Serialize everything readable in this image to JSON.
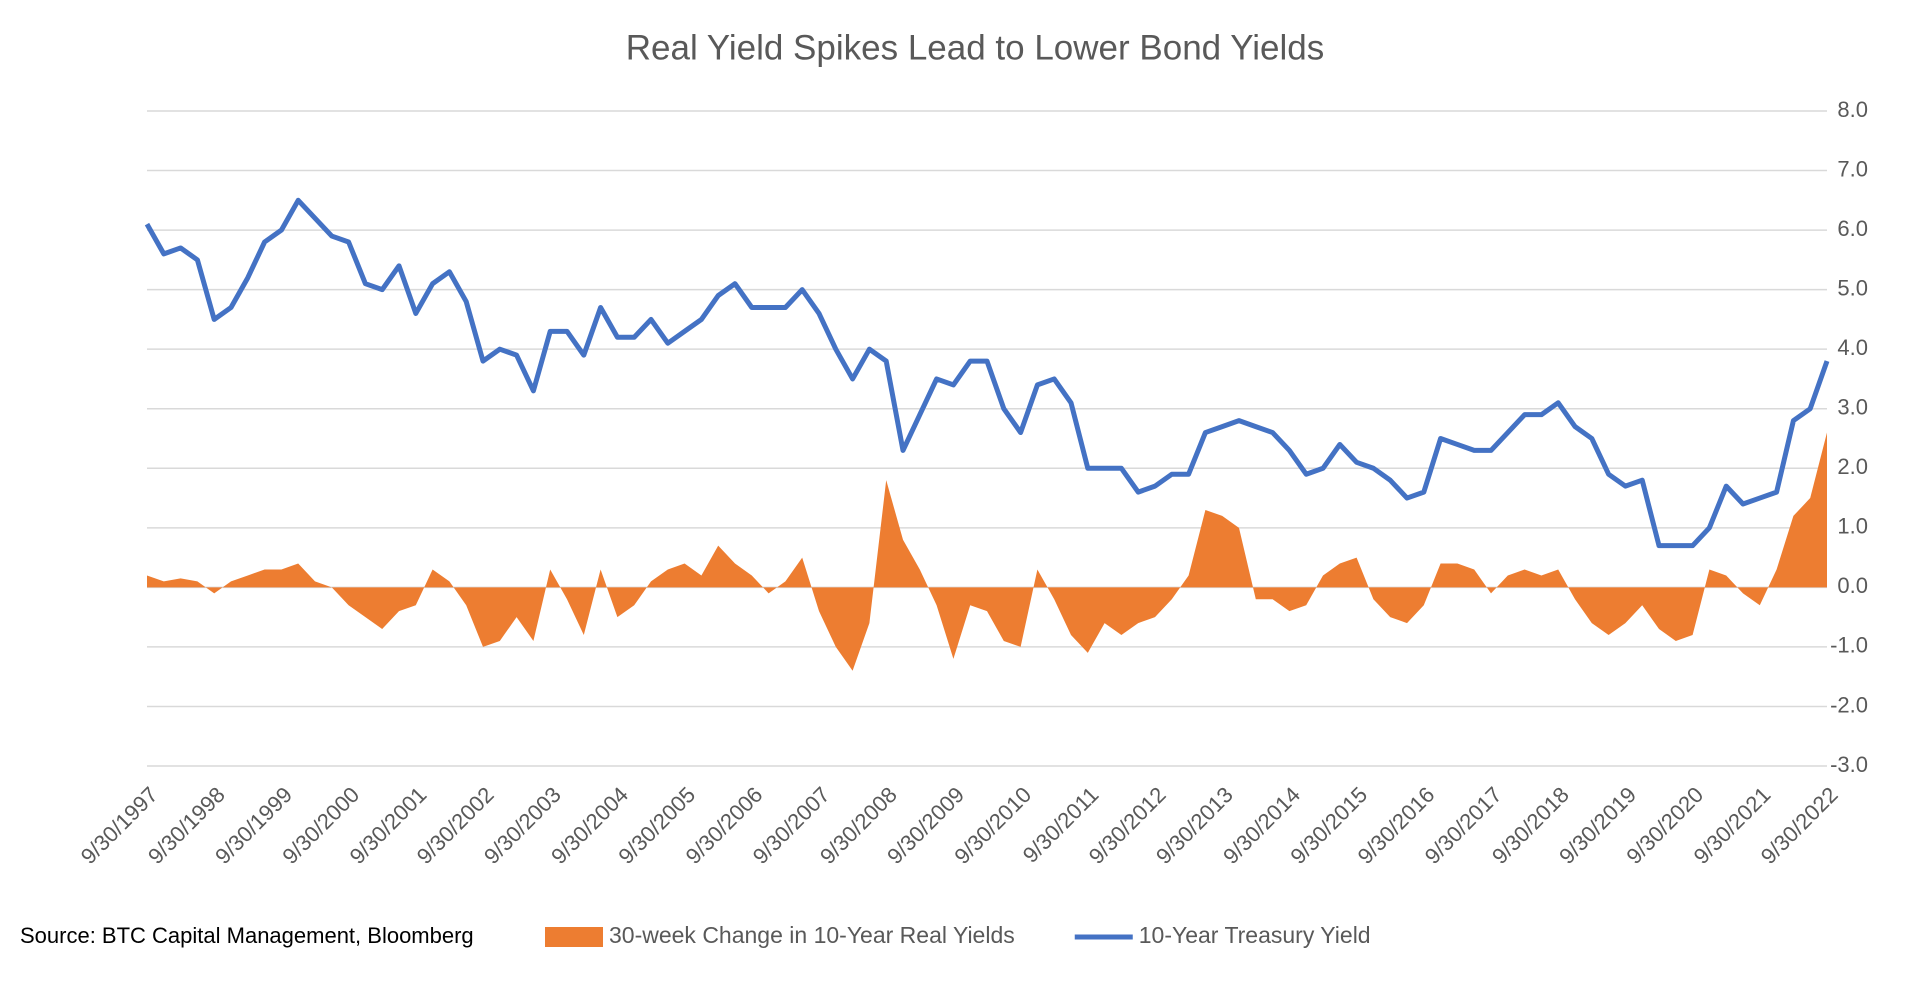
{
  "chart_data": {
    "type": "line_area",
    "title": "Real Yield Spikes Lead to Lower Bond Yields",
    "source": "Source:  BTC Capital Management, Bloomberg",
    "x": [
      1997.75,
      1998,
      1998.25,
      1998.5,
      1998.75,
      1999,
      1999.25,
      1999.5,
      1999.75,
      2000,
      2000.25,
      2000.5,
      2000.75,
      2001,
      2001.25,
      2001.5,
      2001.75,
      2002,
      2002.25,
      2002.5,
      2002.75,
      2003,
      2003.25,
      2003.5,
      2003.75,
      2004,
      2004.25,
      2004.5,
      2004.75,
      2005,
      2005.25,
      2005.5,
      2005.75,
      2006,
      2006.25,
      2006.5,
      2006.75,
      2007,
      2007.25,
      2007.5,
      2007.75,
      2008,
      2008.25,
      2008.5,
      2008.75,
      2009,
      2009.25,
      2009.5,
      2009.75,
      2010,
      2010.25,
      2010.5,
      2010.75,
      2011,
      2011.25,
      2011.5,
      2011.75,
      2012,
      2012.25,
      2012.5,
      2012.75,
      2013,
      2013.25,
      2013.5,
      2013.75,
      2014,
      2014.25,
      2014.5,
      2014.75,
      2015,
      2015.25,
      2015.5,
      2015.75,
      2016,
      2016.25,
      2016.5,
      2016.75,
      2017,
      2017.25,
      2017.5,
      2017.75,
      2018,
      2018.25,
      2018.5,
      2018.75,
      2019,
      2019.25,
      2019.5,
      2019.75,
      2020,
      2020.25,
      2020.5,
      2020.75,
      2021,
      2021.25,
      2021.5,
      2021.75,
      2022,
      2022.25,
      2022.5,
      2022.75
    ],
    "series": [
      {
        "name": "30-week Change in 10-Year Real Yields",
        "kind": "area",
        "color": "#ed7d31",
        "values": [
          0.2,
          0.1,
          0.15,
          0.1,
          -0.1,
          0.1,
          0.2,
          0.3,
          0.3,
          0.4,
          0.1,
          0,
          -0.3,
          -0.5,
          -0.7,
          -0.4,
          -0.3,
          0.3,
          0.1,
          -0.3,
          -1.0,
          -0.9,
          -0.5,
          -0.9,
          0.3,
          -0.2,
          -0.8,
          0.3,
          -0.5,
          -0.3,
          0.1,
          0.3,
          0.4,
          0.2,
          0.7,
          0.4,
          0.2,
          -0.1,
          0.1,
          0.5,
          -0.4,
          -1.0,
          -1.4,
          -0.6,
          1.8,
          0.8,
          0.3,
          -0.3,
          -1.2,
          -0.3,
          -0.4,
          -0.9,
          -1.0,
          0.3,
          -0.2,
          -0.8,
          -1.1,
          -0.6,
          -0.8,
          -0.6,
          -0.5,
          -0.2,
          0.2,
          1.3,
          1.2,
          1.0,
          -0.2,
          -0.2,
          -0.4,
          -0.3,
          0.2,
          0.4,
          0.5,
          -0.2,
          -0.5,
          -0.6,
          -0.3,
          0.4,
          0.4,
          0.3,
          -0.1,
          0.2,
          0.3,
          0.2,
          0.3,
          -0.2,
          -0.6,
          -0.8,
          -0.6,
          -0.3,
          -0.7,
          -0.9,
          -0.8,
          0.3,
          0.2,
          -0.1,
          -0.3,
          0.3,
          1.2,
          1.5,
          2.6
        ]
      },
      {
        "name": "10-Year Treasury Yield",
        "kind": "line",
        "color": "#4472c4",
        "values": [
          6.1,
          5.6,
          5.7,
          5.5,
          4.5,
          4.7,
          5.2,
          5.8,
          6.0,
          6.5,
          6.2,
          5.9,
          5.8,
          5.1,
          5.0,
          5.4,
          4.6,
          5.1,
          5.3,
          4.8,
          3.8,
          4.0,
          3.9,
          3.3,
          4.3,
          4.3,
          3.9,
          4.7,
          4.2,
          4.2,
          4.5,
          4.1,
          4.3,
          4.5,
          4.9,
          5.1,
          4.7,
          4.7,
          4.7,
          5.0,
          4.6,
          4.0,
          3.5,
          4.0,
          3.8,
          2.3,
          2.9,
          3.5,
          3.4,
          3.8,
          3.8,
          3.0,
          2.6,
          3.4,
          3.5,
          3.1,
          2.0,
          2.0,
          2.0,
          1.6,
          1.7,
          1.9,
          1.9,
          2.6,
          2.7,
          2.8,
          2.7,
          2.6,
          2.3,
          1.9,
          2.0,
          2.4,
          2.1,
          2.0,
          1.8,
          1.5,
          1.6,
          2.5,
          2.4,
          2.3,
          2.3,
          2.6,
          2.9,
          2.9,
          3.1,
          2.7,
          2.5,
          1.9,
          1.7,
          1.8,
          0.7,
          0.7,
          0.7,
          1.0,
          1.7,
          1.4,
          1.5,
          1.6,
          2.8,
          3.0,
          3.8
        ]
      }
    ],
    "xlim": [
      1997.75,
      2022.75
    ],
    "xticks": [
      {
        "value": 1997.75,
        "label": "9/30/1997"
      },
      {
        "value": 1998.75,
        "label": "9/30/1998"
      },
      {
        "value": 1999.75,
        "label": "9/30/1999"
      },
      {
        "value": 2000.75,
        "label": "9/30/2000"
      },
      {
        "value": 2001.75,
        "label": "9/30/2001"
      },
      {
        "value": 2002.75,
        "label": "9/30/2002"
      },
      {
        "value": 2003.75,
        "label": "9/30/2003"
      },
      {
        "value": 2004.75,
        "label": "9/30/2004"
      },
      {
        "value": 2005.75,
        "label": "9/30/2005"
      },
      {
        "value": 2006.75,
        "label": "9/30/2006"
      },
      {
        "value": 2007.75,
        "label": "9/30/2007"
      },
      {
        "value": 2008.75,
        "label": "9/30/2008"
      },
      {
        "value": 2009.75,
        "label": "9/30/2009"
      },
      {
        "value": 2010.75,
        "label": "9/30/2010"
      },
      {
        "value": 2011.75,
        "label": "9/30/2011"
      },
      {
        "value": 2012.75,
        "label": "9/30/2012"
      },
      {
        "value": 2013.75,
        "label": "9/30/2013"
      },
      {
        "value": 2014.75,
        "label": "9/30/2014"
      },
      {
        "value": 2015.75,
        "label": "9/30/2015"
      },
      {
        "value": 2016.75,
        "label": "9/30/2016"
      },
      {
        "value": 2017.75,
        "label": "9/30/2017"
      },
      {
        "value": 2018.75,
        "label": "9/30/2018"
      },
      {
        "value": 2019.75,
        "label": "9/30/2019"
      },
      {
        "value": 2020.75,
        "label": "9/30/2020"
      },
      {
        "value": 2021.75,
        "label": "9/30/2021"
      },
      {
        "value": 2022.75,
        "label": "9/30/2022"
      }
    ],
    "ylim": [
      -3,
      8
    ],
    "yticks": [
      {
        "value": 8,
        "label": "8.0"
      },
      {
        "value": 7,
        "label": "7.0"
      },
      {
        "value": 6,
        "label": "6.0"
      },
      {
        "value": 5,
        "label": "5.0"
      },
      {
        "value": 4,
        "label": "4.0"
      },
      {
        "value": 3,
        "label": "3.0"
      },
      {
        "value": 2,
        "label": "2.0"
      },
      {
        "value": 1,
        "label": "1.0"
      },
      {
        "value": 0,
        "label": "0.0"
      },
      {
        "value": -1,
        "label": "-1.0"
      },
      {
        "value": -2,
        "label": "-2.0"
      },
      {
        "value": -3,
        "label": "-3.0"
      }
    ],
    "grid": true,
    "legend": "bottom"
  }
}
